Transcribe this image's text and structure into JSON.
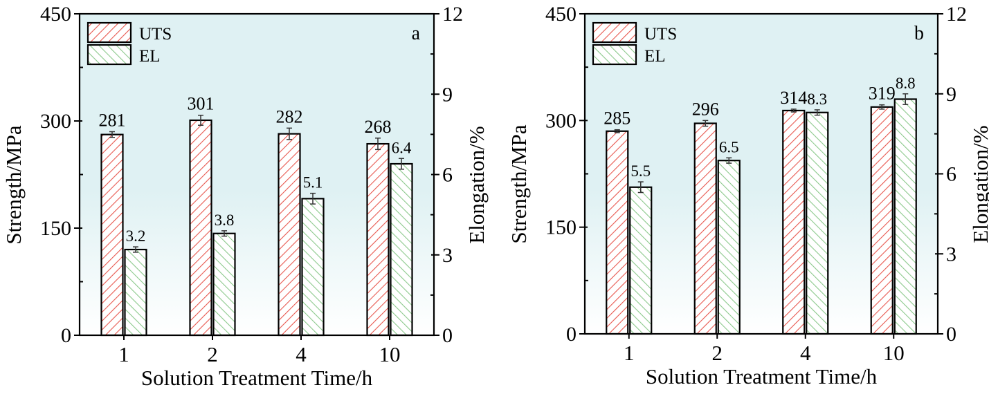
{
  "colors": {
    "uts": "#e8584f",
    "el": "#8cc98c",
    "bg_top": "#dff1f3",
    "bg_bottom": "#ffffff"
  },
  "chart_data": [
    {
      "type": "bar",
      "panel_label": "a",
      "xlabel": "Solution Treatment Time/h",
      "ylabel": "Strength/MPa",
      "y2label": "Elongation/%",
      "categories": [
        "1",
        "2",
        "4",
        "10"
      ],
      "ylim": [
        0,
        450
      ],
      "yticks": [
        "0",
        "150",
        "300",
        "450"
      ],
      "y2lim": [
        0,
        12
      ],
      "y2ticks": [
        "0",
        "3",
        "6",
        "9",
        "12"
      ],
      "legend": [
        "UTS",
        "EL"
      ],
      "legend_position": "top-left",
      "series": [
        {
          "name": "UTS",
          "axis": "left",
          "values": [
            281,
            301,
            282,
            268
          ],
          "errors": [
            4,
            7,
            8,
            8
          ],
          "labels": [
            "281",
            "301",
            "282",
            "268"
          ]
        },
        {
          "name": "EL",
          "axis": "right",
          "values": [
            3.2,
            3.8,
            5.1,
            6.4
          ],
          "errors": [
            0.1,
            0.1,
            0.2,
            0.2
          ],
          "labels": [
            "3.2",
            "3.8",
            "5.1",
            "6.4"
          ]
        }
      ]
    },
    {
      "type": "bar",
      "panel_label": "b",
      "xlabel": "Solution Treatment Time/h",
      "ylabel": "Strength/MPa",
      "y2label": "Elongation/%",
      "categories": [
        "1",
        "2",
        "4",
        "10"
      ],
      "ylim": [
        0,
        450
      ],
      "yticks": [
        "0",
        "150",
        "300",
        "450"
      ],
      "y2lim": [
        0,
        12
      ],
      "y2ticks": [
        "0",
        "3",
        "6",
        "9",
        "12"
      ],
      "legend": [
        "UTS",
        "EL"
      ],
      "legend_position": "top-left",
      "series": [
        {
          "name": "UTS",
          "axis": "left",
          "values": [
            285,
            296,
            314,
            319
          ],
          "errors": [
            2,
            4,
            2,
            3
          ],
          "labels": [
            "285",
            "296",
            "314",
            "319"
          ]
        },
        {
          "name": "EL",
          "axis": "right",
          "values": [
            5.5,
            6.5,
            8.3,
            8.8
          ],
          "errors": [
            0.2,
            0.1,
            0.1,
            0.2
          ],
          "labels": [
            "5.5",
            "6.5",
            "8.3",
            "8.8"
          ]
        }
      ]
    }
  ]
}
